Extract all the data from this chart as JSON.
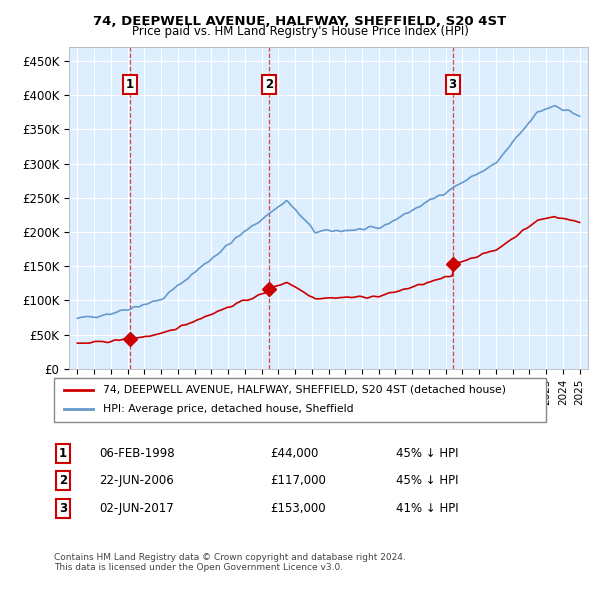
{
  "title": "74, DEEPWELL AVENUE, HALFWAY, SHEFFIELD, S20 4ST",
  "subtitle": "Price paid vs. HM Land Registry's House Price Index (HPI)",
  "red_label": "74, DEEPWELL AVENUE, HALFWAY, SHEFFIELD, S20 4ST (detached house)",
  "blue_label": "HPI: Average price, detached house, Sheffield",
  "footer1": "Contains HM Land Registry data © Crown copyright and database right 2024.",
  "footer2": "This data is licensed under the Open Government Licence v3.0.",
  "transactions": [
    {
      "num": 1,
      "date": "06-FEB-1998",
      "price": 44000,
      "pct": "45%",
      "x_year": 1998.12
    },
    {
      "num": 2,
      "date": "22-JUN-2006",
      "price": 117000,
      "pct": "45%",
      "x_year": 2006.47
    },
    {
      "num": 3,
      "date": "02-JUN-2017",
      "price": 153000,
      "pct": "41%",
      "x_year": 2017.42
    }
  ],
  "ylim": [
    0,
    470000
  ],
  "yticks": [
    0,
    50000,
    100000,
    150000,
    200000,
    250000,
    300000,
    350000,
    400000,
    450000
  ],
  "ytick_labels": [
    "£0",
    "£50K",
    "£100K",
    "£150K",
    "£200K",
    "£250K",
    "£300K",
    "£350K",
    "£400K",
    "£450K"
  ],
  "xlim_start": 1994.5,
  "xlim_end": 2025.5,
  "red_color": "#cc0000",
  "blue_color": "#6699cc",
  "bg_color": "#ddeeff",
  "grid_color": "#ffffff",
  "num_box_color": "#cc0000",
  "vline_color": "#cc0000"
}
